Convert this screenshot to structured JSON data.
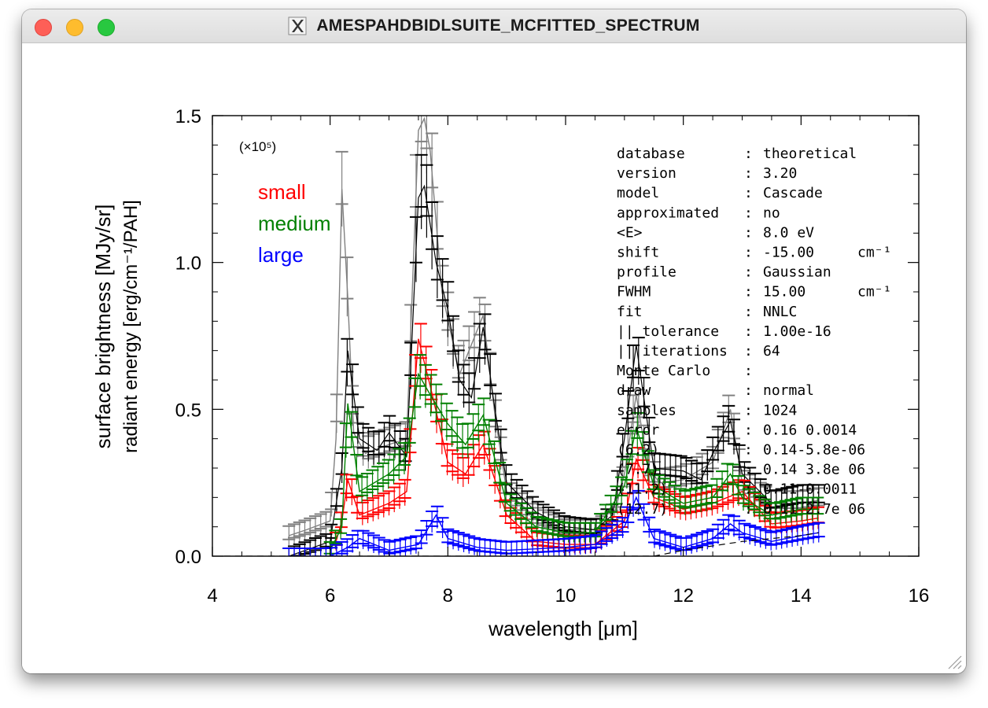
{
  "window": {
    "title": "AMESPAHDBIDLSUITE_MCFITTED_SPECTRUM",
    "icon": "x11-icon",
    "buttons": [
      "close",
      "minimize",
      "maximize"
    ]
  },
  "chart_data": {
    "type": "line",
    "xlabel": "wavelength [μm]",
    "ylabel_line1": "surface brightness [MJy/sr]",
    "ylabel_line2": "radiant energy [erg/cm⁻¹/PAH]",
    "xlim": [
      4,
      16
    ],
    "ylim": [
      0,
      1.5
    ],
    "x_ticks": [
      "4",
      "6",
      "8",
      "10",
      "12",
      "14",
      "16"
    ],
    "y_ticks": [
      "0.0",
      "0.5",
      "1.0",
      "1.5"
    ],
    "y_scale_note": "(×10⁵)",
    "error_bars": true,
    "grid": false,
    "legend_position": "top-left",
    "series": [
      {
        "name": "small",
        "color": "#ff0000",
        "x": [
          6.1,
          6.2,
          6.3,
          6.5,
          7.0,
          7.3,
          7.5,
          7.7,
          8.0,
          8.3,
          8.6,
          9.0,
          9.5,
          10.0,
          10.5,
          11.0,
          11.2,
          11.5,
          12.0,
          12.5,
          13.0,
          13.5,
          14.0,
          14.3
        ],
        "y": [
          0.05,
          0.12,
          0.26,
          0.14,
          0.18,
          0.22,
          0.74,
          0.58,
          0.32,
          0.28,
          0.38,
          0.14,
          0.05,
          0.04,
          0.04,
          0.12,
          0.33,
          0.2,
          0.16,
          0.18,
          0.22,
          0.11,
          0.12,
          0.13
        ]
      },
      {
        "name": "medium",
        "color": "#008000",
        "x": [
          6.0,
          6.2,
          6.3,
          6.5,
          7.0,
          7.3,
          7.5,
          7.7,
          8.0,
          8.3,
          8.6,
          9.0,
          9.5,
          10.0,
          10.5,
          11.0,
          11.2,
          11.5,
          12.0,
          12.5,
          12.8,
          13.0,
          13.5,
          14.0,
          14.3
        ],
        "y": [
          0.02,
          0.1,
          0.52,
          0.22,
          0.28,
          0.34,
          0.62,
          0.55,
          0.45,
          0.38,
          0.48,
          0.18,
          0.1,
          0.08,
          0.08,
          0.24,
          0.44,
          0.24,
          0.18,
          0.2,
          0.28,
          0.2,
          0.14,
          0.16,
          0.16
        ]
      },
      {
        "name": "large",
        "color": "#0000ff",
        "x": [
          5.3,
          6.0,
          6.3,
          6.5,
          7.0,
          7.5,
          7.8,
          8.0,
          8.5,
          9.0,
          10.0,
          10.5,
          11.0,
          11.2,
          11.5,
          12.0,
          12.5,
          12.8,
          13.0,
          13.5,
          14.0,
          14.3
        ],
        "y": [
          0.0,
          0.0,
          0.03,
          0.06,
          0.02,
          0.04,
          0.14,
          0.06,
          0.03,
          0.02,
          0.03,
          0.04,
          0.1,
          0.2,
          0.06,
          0.03,
          0.06,
          0.11,
          0.08,
          0.05,
          0.07,
          0.08
        ]
      }
    ],
    "total": {
      "color": "#000000",
      "x": [
        5.3,
        6.0,
        6.2,
        6.3,
        6.5,
        6.8,
        7.0,
        7.3,
        7.5,
        7.6,
        7.8,
        8.0,
        8.2,
        8.4,
        8.6,
        8.8,
        9.0,
        9.5,
        10.0,
        10.5,
        10.8,
        11.0,
        11.2,
        11.5,
        12.0,
        12.3,
        12.5,
        12.8,
        13.0,
        13.3,
        13.5,
        14.0,
        14.3
      ],
      "y": [
        0.0,
        0.05,
        0.3,
        0.7,
        0.4,
        0.36,
        0.42,
        0.34,
        1.22,
        1.26,
        1.0,
        0.84,
        0.6,
        0.54,
        0.78,
        0.5,
        0.25,
        0.15,
        0.1,
        0.09,
        0.14,
        0.4,
        0.72,
        0.3,
        0.29,
        0.26,
        0.35,
        0.46,
        0.28,
        0.22,
        0.18,
        0.2,
        0.2
      ]
    },
    "observed": {
      "color": "#808080",
      "x": [
        5.3,
        5.6,
        6.0,
        6.1,
        6.2,
        6.3,
        6.4,
        6.6,
        7.0,
        7.3,
        7.5,
        7.6,
        7.7,
        7.9,
        8.2,
        8.6,
        8.8,
        9.0,
        9.5,
        10.0,
        10.5,
        10.8,
        11.0,
        11.2,
        11.4,
        11.6,
        12.0,
        12.5,
        12.8,
        13.0,
        13.5,
        14.0,
        14.3
      ],
      "y": [
        0.07,
        0.09,
        0.12,
        0.4,
        1.25,
        0.88,
        0.42,
        0.35,
        0.38,
        0.4,
        1.45,
        1.49,
        1.38,
        0.9,
        0.62,
        0.82,
        0.48,
        0.22,
        0.13,
        0.09,
        0.09,
        0.12,
        0.28,
        0.55,
        0.3,
        0.25,
        0.26,
        0.32,
        0.5,
        0.25,
        0.18,
        0.18,
        0.19
      ]
    },
    "residual": {
      "color": "#000000",
      "style": "dashed",
      "x": [
        4.2,
        11.5,
        12.0,
        13.0,
        14.0,
        14.3
      ],
      "y": [
        0.0,
        0.0,
        0.02,
        0.05,
        0.07,
        0.08
      ]
    },
    "legend": [
      {
        "label": "small",
        "color": "#ff0000"
      },
      {
        "label": "medium",
        "color": "#008000"
      },
      {
        "label": "large",
        "color": "#0000ff"
      }
    ],
    "info_rows": [
      {
        "key": "database",
        "value": "theoretical"
      },
      {
        "key": "version",
        "value": "3.20"
      },
      {
        "key": "model",
        "value": "Cascade"
      },
      {
        "key": "approximated",
        "value": "no"
      },
      {
        "key": "<E>",
        "value": "8.0 eV"
      },
      {
        "key": "shift",
        "value": "-15.00",
        "unit": "cm⁻¹"
      },
      {
        "key": "profile",
        "value": "Gaussian"
      },
      {
        "key": "FWHM",
        "value": "15.00",
        "unit": "cm⁻¹"
      },
      {
        "key": "fit",
        "value": "NNLC"
      },
      {
        "key": "|| tolerance",
        "value": "1.00e-16"
      },
      {
        "key": "|| iterations",
        "value": "64"
      },
      {
        "key": "Monte Carlo",
        "value": ""
      },
      {
        "key": "  draw",
        "value": "normal"
      },
      {
        "key": "  samples",
        "value": "1024"
      },
      {
        "key": "  error",
        "value": "0.16 0.0014"
      },
      {
        "key": "  (6.2)",
        "value": "0.14-5.8e-06"
      },
      {
        "key": "  (7.7)",
        "value": "0.14 3.8e 06"
      },
      {
        "key": "  (11.2)",
        "value": "0.11-0.0011"
      },
      {
        "key": "  (12.7)",
        "value": "0.11 2.7e 06"
      }
    ]
  }
}
